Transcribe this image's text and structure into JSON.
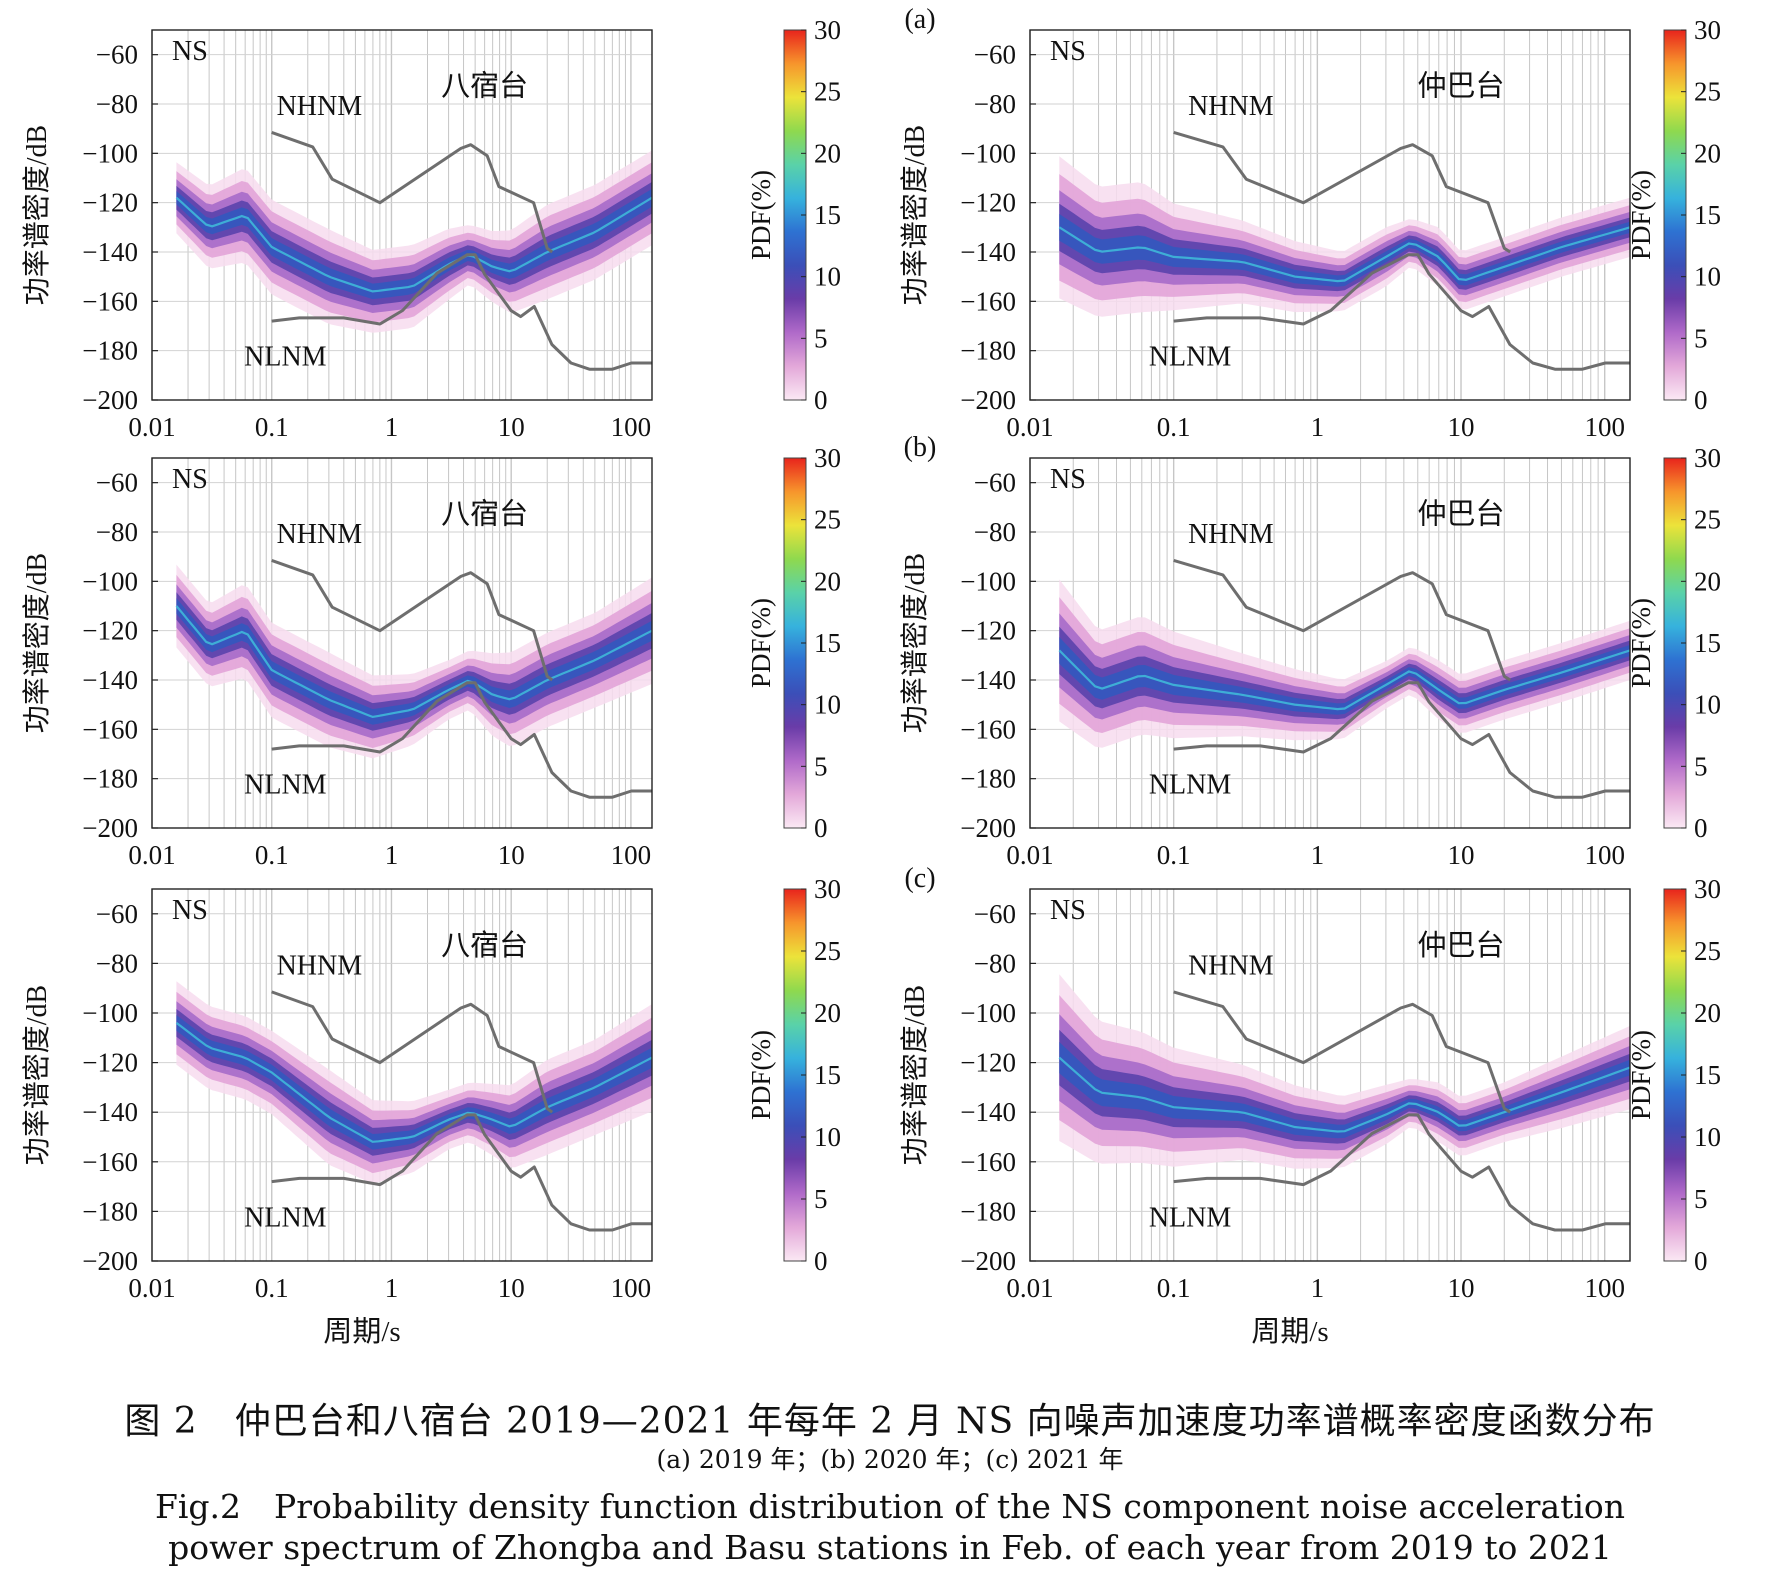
{
  "figure": {
    "caption_zh": "图 2　仲巴台和八宿台 2019—2021 年每年 2 月 NS 向噪声加速度功率谱概率密度函数分布",
    "caption_sub": "(a) 2019 年；(b) 2020 年；(c) 2021 年",
    "caption_en_1": "Fig.2　Probability density function distribution of the NS component noise acceleration",
    "caption_en_2": "power spectrum of Zhongba and Basu stations in Feb. of each year from 2019 to 2021",
    "row_labels": [
      "(a)",
      "(b)",
      "(c)"
    ]
  },
  "colorbar": {
    "label": "PDF(%)",
    "ticks": [
      0,
      5,
      10,
      15,
      20,
      25,
      30
    ],
    "colors": [
      "#fbe9f4",
      "#e3a8d9",
      "#b06ac9",
      "#6a3ca8",
      "#3b4fb8",
      "#2e72d2",
      "#36b2dd",
      "#5ad2a8",
      "#8fd94e",
      "#ece33a",
      "#f7952c",
      "#e8241c"
    ]
  },
  "chart_data": [
    {
      "panel": "(a)",
      "year": 2019,
      "station": "八宿台",
      "component": "NS",
      "type": "heatmap",
      "xlabel": "",
      "ylabel": "功率谱密度/dB",
      "xscale": "log",
      "xlim": [
        0.01,
        150
      ],
      "ylim": [
        -200,
        -50
      ],
      "xticks": [
        "0.01",
        "0.1",
        "1",
        "10",
        "100"
      ],
      "yticks": [
        -60,
        -80,
        -100,
        -120,
        -140,
        -160,
        -180,
        -200
      ],
      "models": {
        "NHNM": "NHNM",
        "NLNM": "NLNM"
      },
      "mode_curve": {
        "period": [
          0.016,
          0.03,
          0.06,
          0.1,
          0.3,
          0.7,
          1.5,
          3,
          4.5,
          7,
          10,
          20,
          50,
          150
        ],
        "db": [
          -118,
          -130,
          -125,
          -138,
          -150,
          -156,
          -154,
          -145,
          -141,
          -146,
          -148,
          -140,
          -132,
          -118
        ]
      },
      "spread_db": [
        6,
        7,
        8,
        8,
        8,
        7,
        7,
        6,
        5,
        6,
        7,
        8,
        8,
        8
      ]
    },
    {
      "panel": "(a)",
      "year": 2019,
      "station": "仲巴台",
      "component": "NS",
      "type": "heatmap",
      "xlabel": "",
      "ylabel": "功率谱密度/dB",
      "xscale": "log",
      "xlim": [
        0.01,
        150
      ],
      "ylim": [
        -200,
        -50
      ],
      "xticks": [
        "0.01",
        "0.1",
        "1",
        "10",
        "100"
      ],
      "yticks": [
        -60,
        -80,
        -100,
        -120,
        -140,
        -160,
        -180,
        -200
      ],
      "models": {
        "NHNM": "NHNM",
        "NLNM": "NLNM"
      },
      "mode_curve": {
        "period": [
          0.016,
          0.03,
          0.06,
          0.1,
          0.3,
          0.7,
          1.5,
          3,
          4.5,
          7,
          10,
          20,
          50,
          150
        ],
        "db": [
          -130,
          -140,
          -138,
          -142,
          -144,
          -150,
          -152,
          -142,
          -136,
          -142,
          -152,
          -146,
          -138,
          -130
        ]
      },
      "spread_db": [
        12,
        11,
        11,
        9,
        7,
        6,
        5,
        5,
        4,
        5,
        5,
        5,
        5,
        5
      ]
    },
    {
      "panel": "(b)",
      "year": 2020,
      "station": "八宿台",
      "component": "NS",
      "type": "heatmap",
      "xlabel": "",
      "ylabel": "功率谱密度/dB",
      "xscale": "log",
      "xlim": [
        0.01,
        150
      ],
      "ylim": [
        -200,
        -50
      ],
      "xticks": [
        "0.01",
        "0.1",
        "1",
        "10",
        "100"
      ],
      "yticks": [
        -60,
        -80,
        -100,
        -120,
        -140,
        -160,
        -180,
        -200
      ],
      "models": {
        "NHNM": "NHNM",
        "NLNM": "NLNM"
      },
      "mode_curve": {
        "period": [
          0.016,
          0.03,
          0.06,
          0.1,
          0.3,
          0.7,
          1.5,
          3,
          4.5,
          7,
          10,
          20,
          50,
          150
        ],
        "db": [
          -110,
          -126,
          -120,
          -136,
          -148,
          -155,
          -152,
          -144,
          -140,
          -146,
          -148,
          -140,
          -132,
          -120
        ]
      },
      "spread_db": [
        7,
        7,
        8,
        8,
        8,
        7,
        6,
        5,
        5,
        7,
        8,
        8,
        8,
        9
      ]
    },
    {
      "panel": "(b)",
      "year": 2020,
      "station": "仲巴台",
      "component": "NS",
      "type": "heatmap",
      "xlabel": "",
      "ylabel": "功率谱密度/dB",
      "xscale": "log",
      "xlim": [
        0.01,
        150
      ],
      "ylim": [
        -200,
        -50
      ],
      "xticks": [
        "0.01",
        "0.1",
        "1",
        "10",
        "100"
      ],
      "yticks": [
        -60,
        -80,
        -100,
        -120,
        -140,
        -160,
        -180,
        -200
      ],
      "models": {
        "NHNM": "NHNM",
        "NLNM": "NLNM"
      },
      "mode_curve": {
        "period": [
          0.016,
          0.03,
          0.06,
          0.1,
          0.3,
          0.7,
          1.5,
          3,
          4.5,
          7,
          10,
          20,
          50,
          150
        ],
        "db": [
          -128,
          -144,
          -138,
          -142,
          -146,
          -150,
          -152,
          -142,
          -136,
          -144,
          -150,
          -144,
          -137,
          -128
        ]
      },
      "spread_db": [
        12,
        10,
        10,
        9,
        7,
        6,
        5,
        4,
        4,
        5,
        5,
        5,
        5,
        5
      ]
    },
    {
      "panel": "(c)",
      "year": 2021,
      "station": "八宿台",
      "component": "NS",
      "type": "heatmap",
      "xlabel": "周期/s",
      "ylabel": "功率谱密度/dB",
      "xscale": "log",
      "xlim": [
        0.01,
        150
      ],
      "ylim": [
        -200,
        -50
      ],
      "xticks": [
        "0.01",
        "0.1",
        "1",
        "10",
        "100"
      ],
      "yticks": [
        -60,
        -80,
        -100,
        -120,
        -140,
        -160,
        -180,
        -200
      ],
      "models": {
        "NHNM": "NHNM",
        "NLNM": "NLNM"
      },
      "mode_curve": {
        "period": [
          0.016,
          0.03,
          0.06,
          0.1,
          0.3,
          0.7,
          1.5,
          3,
          4.5,
          7,
          10,
          20,
          50,
          150
        ],
        "db": [
          -104,
          -114,
          -118,
          -124,
          -142,
          -152,
          -150,
          -143,
          -140,
          -143,
          -146,
          -138,
          -130,
          -118
        ]
      },
      "spread_db": [
        7,
        7,
        7,
        7,
        8,
        7,
        6,
        5,
        5,
        6,
        7,
        8,
        8,
        9
      ]
    },
    {
      "panel": "(c)",
      "year": 2021,
      "station": "仲巴台",
      "component": "NS",
      "type": "heatmap",
      "xlabel": "周期/s",
      "ylabel": "功率谱密度/dB",
      "xscale": "log",
      "xlim": [
        0.01,
        150
      ],
      "ylim": [
        -200,
        -50
      ],
      "xticks": [
        "0.01",
        "0.1",
        "1",
        "10",
        "100"
      ],
      "yticks": [
        -60,
        -80,
        -100,
        -120,
        -140,
        -160,
        -180,
        -200
      ],
      "models": {
        "NHNM": "NHNM",
        "NLNM": "NLNM"
      },
      "mode_curve": {
        "period": [
          0.016,
          0.03,
          0.06,
          0.1,
          0.3,
          0.7,
          1.5,
          3,
          4.5,
          7,
          10,
          20,
          50,
          150
        ],
        "db": [
          -118,
          -132,
          -134,
          -138,
          -140,
          -146,
          -148,
          -141,
          -136,
          -140,
          -146,
          -140,
          -132,
          -122
        ]
      },
      "spread_db": [
        14,
        12,
        11,
        10,
        8,
        7,
        6,
        5,
        4,
        5,
        5,
        5,
        6,
        7
      ]
    }
  ],
  "noise_models": {
    "nhnm": {
      "period": [
        0.1,
        0.22,
        0.32,
        0.8,
        3.8,
        4.6,
        6.3,
        7.9,
        15.4,
        20,
        22
      ],
      "db": [
        -91.5,
        -97.4,
        -110.5,
        -120,
        -98,
        -96.5,
        -101,
        -113.5,
        -120,
        -138.5,
        -140
      ]
    },
    "nlnm": {
      "period": [
        0.1,
        0.17,
        0.4,
        0.8,
        1.24,
        2.4,
        4.3,
        5,
        6,
        10,
        12,
        15.6,
        21.9,
        31.6,
        45,
        70,
        101,
        150
      ],
      "db": [
        -168,
        -166.7,
        -166.7,
        -169.2,
        -163.7,
        -148.6,
        -141.1,
        -141.1,
        -149,
        -163.8,
        -166.2,
        -162.1,
        -177.5,
        -185,
        -187.5,
        -187.5,
        -185,
        -185
      ]
    }
  }
}
